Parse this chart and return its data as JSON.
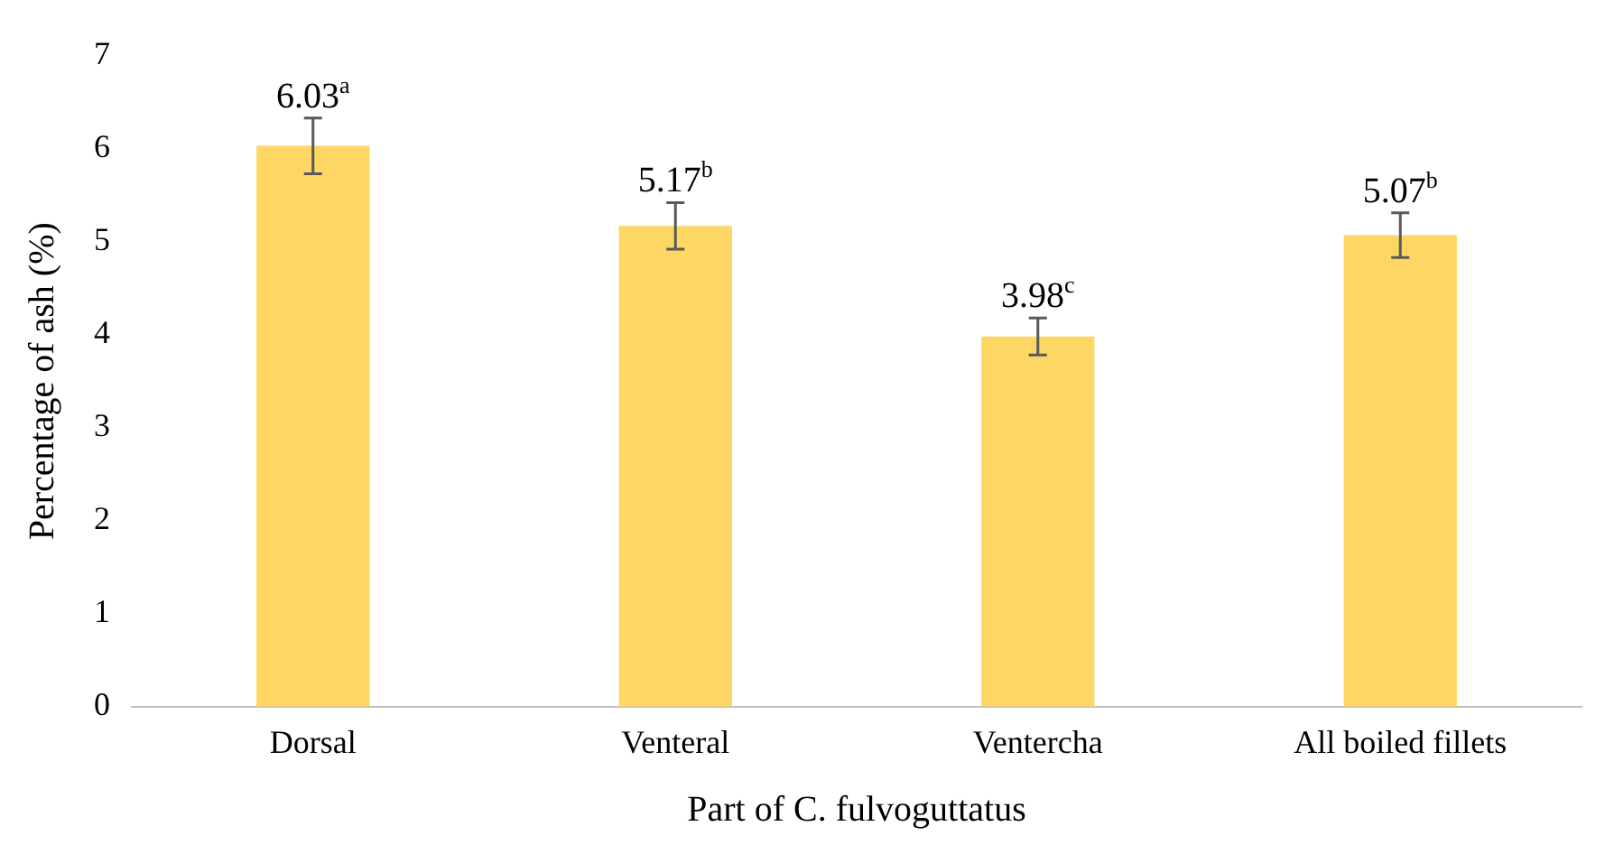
{
  "chart_data": {
    "type": "bar",
    "xlabel": "Part of C. fulvoguttatus",
    "ylabel": "Percentage of ash (%)",
    "categories": [
      "Dorsal",
      "Venteral",
      "Ventercha",
      "All boiled fillets"
    ],
    "values": [
      6.03,
      5.17,
      3.98,
      5.07
    ],
    "errors": [
      0.3,
      0.25,
      0.2,
      0.24
    ],
    "value_labels": [
      "6.03$^{a}$",
      "5.17$^{b}$",
      "3.98$^{c}$",
      "5.07$^{b}$"
    ],
    "color": "#fdd664",
    "ylim": [
      0,
      7
    ],
    "yticks": [
      0,
      1,
      2,
      3,
      4,
      5,
      6,
      7
    ],
    "grid": false,
    "legend": false
  }
}
